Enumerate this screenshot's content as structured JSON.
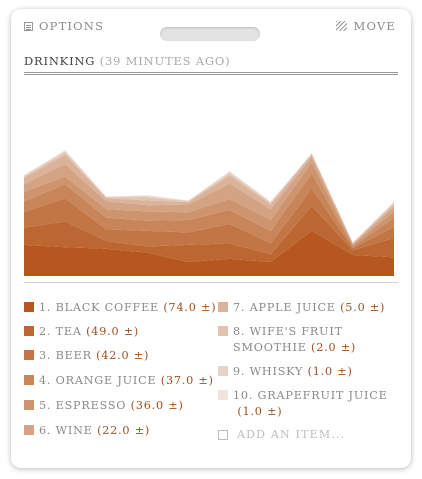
{
  "header": {
    "options_label": "OPTIONS",
    "move_label": "MOVE"
  },
  "widget": {
    "title": "DRINKING",
    "subtitle": "(39 MINUTES AGO)",
    "add_item_label": "ADD AN ITEM..."
  },
  "legend": [
    {
      "label": "1. BLACK COFFEE",
      "value": "(74.0 ±)",
      "color": "#b5571f"
    },
    {
      "label": "2. TEA",
      "value": "(49.0 ±)",
      "color": "#bc6631"
    },
    {
      "label": "3. BEER",
      "value": "(42.0 ±)",
      "color": "#c27545"
    },
    {
      "label": "4. ORANGE JUICE",
      "value": "(37.0 ±)",
      "color": "#c88559"
    },
    {
      "label": "5. ESPRESSO",
      "value": "(36.0 ±)",
      "color": "#ce946e"
    },
    {
      "label": "6. WINE",
      "value": "(22.0 ±)",
      "color": "#d4a384"
    },
    {
      "label": "7. APPLE JUICE",
      "value": "(5.0 ±)",
      "color": "#dab39a"
    },
    {
      "label": "8. WIFE'S FRUIT",
      "label2": "SMOOTHIE",
      "value": "(2.0 ±)",
      "color": "#e1c3b0"
    },
    {
      "label": "9. WHISKY",
      "value": "(1.0 ±)",
      "color": "#e8d4c7"
    },
    {
      "label": "10. GRAPEFRUIT JUICE",
      "value": "(1.0 ±)",
      "color": "#f0e4dc"
    }
  ],
  "chart_data": {
    "type": "area",
    "stacked": true,
    "x": [
      0,
      1,
      2,
      3,
      4,
      5,
      6,
      7,
      8,
      9
    ],
    "series": [
      {
        "name": "BLACK COFFEE",
        "values": [
          40,
          37,
          35,
          30,
          18,
          22,
          18,
          58,
          27,
          24
        ]
      },
      {
        "name": "TEA",
        "values": [
          22,
          33,
          10,
          8,
          22,
          20,
          10,
          32,
          6,
          25
        ]
      },
      {
        "name": "BEER",
        "values": [
          20,
          30,
          15,
          20,
          16,
          25,
          14,
          22,
          3,
          14
        ]
      },
      {
        "name": "ORANGE JUICE",
        "values": [
          14,
          18,
          15,
          13,
          16,
          18,
          16,
          20,
          2,
          12
        ]
      },
      {
        "name": "ESPRESSO",
        "values": [
          12,
          10,
          11,
          12,
          10,
          14,
          14,
          14,
          2,
          8
        ]
      },
      {
        "name": "WINE",
        "values": [
          10,
          16,
          10,
          8,
          10,
          20,
          14,
          7,
          1,
          6
        ]
      },
      {
        "name": "APPLE JUICE",
        "values": [
          8,
          12,
          4,
          6,
          3,
          10,
          6,
          3,
          1,
          3
        ]
      },
      {
        "name": "WIFE'S FRUIT SMOOTHIE",
        "values": [
          2,
          3,
          1,
          4,
          1,
          3,
          2,
          1,
          1,
          2
        ]
      },
      {
        "name": "WHISKY",
        "values": [
          1,
          2,
          1,
          2,
          1,
          2,
          1,
          1,
          0,
          1
        ]
      },
      {
        "name": "GRAPEFRUIT JUICE",
        "values": [
          1,
          1,
          0,
          1,
          0,
          1,
          1,
          0,
          0,
          1
        ]
      }
    ],
    "ylim": [
      0,
      180
    ]
  }
}
